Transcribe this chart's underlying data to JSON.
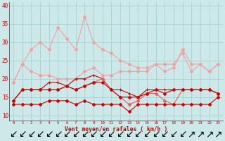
{
  "x": [
    0,
    1,
    2,
    3,
    4,
    5,
    6,
    7,
    8,
    9,
    10,
    11,
    12,
    13,
    14,
    15,
    16,
    17,
    18,
    19,
    20,
    21,
    22,
    23
  ],
  "line_gust_max": [
    19,
    24,
    28,
    30,
    28,
    34,
    31,
    28,
    37,
    30,
    28,
    27,
    25,
    24,
    23,
    23,
    24,
    22,
    23,
    28,
    24,
    24,
    22,
    24
  ],
  "line_mean_max": [
    19,
    24,
    22,
    21,
    21,
    20,
    20,
    20,
    22,
    23,
    21,
    21,
    22,
    22,
    22,
    22,
    24,
    24,
    24,
    27,
    22,
    24,
    22,
    24
  ],
  "line_gust_avg": [
    14,
    17,
    17,
    17,
    19,
    19,
    18,
    20,
    20,
    21,
    20,
    17,
    17,
    16,
    15,
    17,
    17,
    17,
    17,
    17,
    17,
    17,
    17,
    16
  ],
  "line_mean_med": [
    14,
    17,
    17,
    17,
    17,
    17,
    18,
    17,
    18,
    19,
    20,
    17,
    15,
    13,
    14,
    16,
    16,
    14,
    13,
    17,
    17,
    17,
    17,
    16
  ],
  "line_mean_avg": [
    14,
    17,
    17,
    17,
    17,
    17,
    18,
    17,
    18,
    19,
    19,
    17,
    15,
    15,
    15,
    16,
    17,
    16,
    17,
    17,
    17,
    17,
    17,
    16
  ],
  "line_mean_min": [
    13,
    13,
    13,
    13,
    14,
    14,
    14,
    13,
    14,
    13,
    13,
    13,
    13,
    11,
    13,
    13,
    13,
    13,
    13,
    13,
    13,
    13,
    13,
    15
  ],
  "color_light": "#f0a0a0",
  "color_mid": "#e06060",
  "color_dark": "#cc0000",
  "color_flat": "#cc0000",
  "bg_color": "#cce8e8",
  "grid_color": "#aacece",
  "xlabel": "Vent moyen/en rafales ( km/h )",
  "yticks": [
    10,
    15,
    20,
    25,
    30,
    35,
    40
  ],
  "ylim": [
    8.5,
    41
  ],
  "xlim": [
    -0.5,
    23.5
  ]
}
